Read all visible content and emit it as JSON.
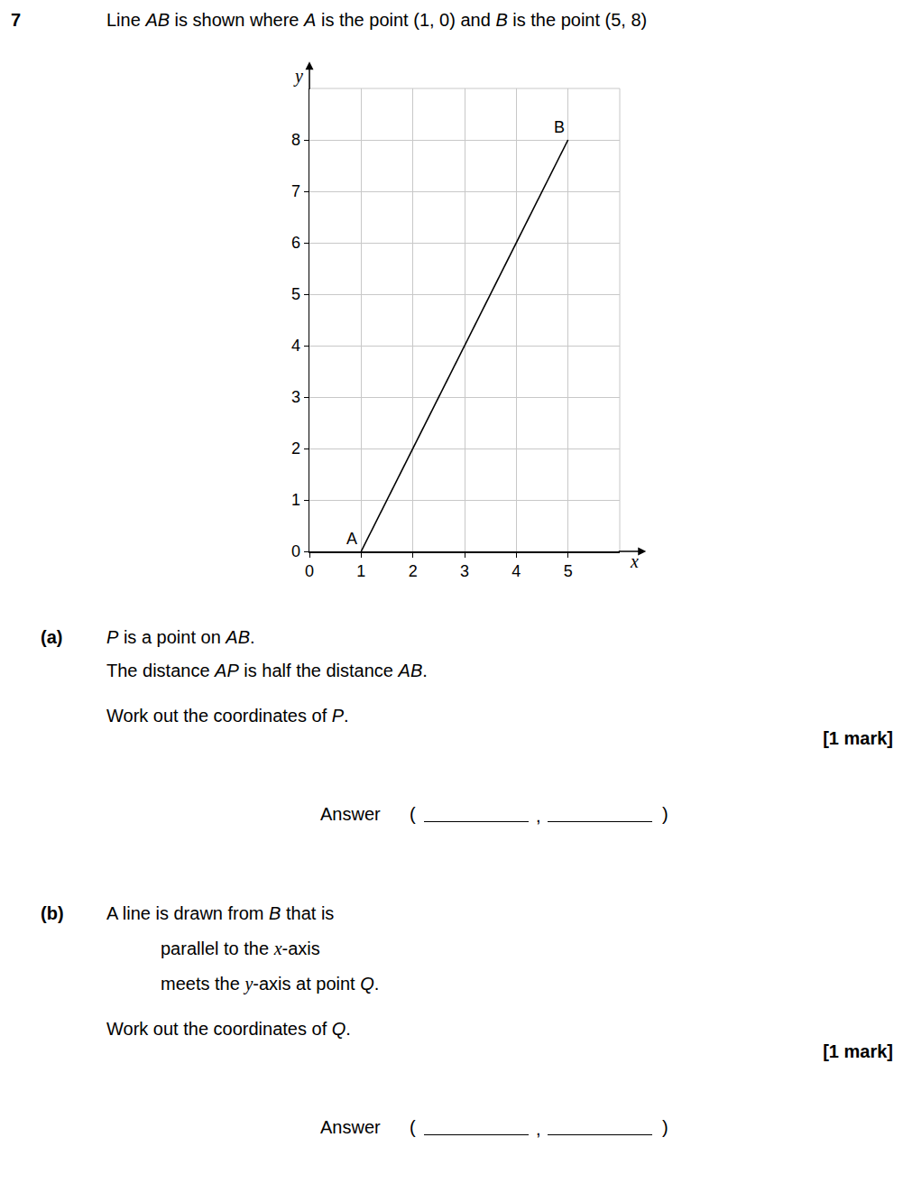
{
  "question": {
    "number": "7",
    "text": {
      "text": "Line AB is shown where A is the point (1, 0) and B is the point (5, 8)",
      "italic": [
        "AB",
        "A",
        "B"
      ]
    }
  },
  "chart_data": {
    "type": "line",
    "x": [
      1,
      5
    ],
    "values": [
      0,
      8
    ],
    "point_labels": [
      "A",
      "B"
    ],
    "color": "#000000",
    "x_label": "x",
    "y_label": "y",
    "xlim": [
      0,
      6
    ],
    "ylim": [
      0,
      9
    ],
    "xticks": [
      0,
      1,
      2,
      3,
      4,
      5
    ],
    "yticks": [
      0,
      1,
      2,
      3,
      4,
      5,
      6,
      7,
      8
    ],
    "grid": true
  },
  "parts": [
    {
      "label": "(a)",
      "lines": [
        {
          "text": "P is a point on AB.",
          "italic": [
            "P",
            "AB"
          ]
        },
        {
          "text": "The distance AP is half the distance AB.",
          "italic": [
            "AP",
            "AB"
          ]
        }
      ],
      "conditions": [],
      "task": {
        "text": "Work out the coordinates of P.",
        "italic": [
          "P"
        ]
      },
      "marks": "[1 mark]",
      "answer": {
        "label": "Answer",
        "open": "(",
        "sep": ",",
        "close": ")"
      }
    },
    {
      "label": "(b)",
      "lines": [
        {
          "text": "A line is drawn from B that is",
          "italic": [
            "B"
          ]
        }
      ],
      "conditions": [
        {
          "text": "parallel to the x-axis",
          "italic": [
            "x"
          ]
        },
        {
          "text": "meets the y-axis at point Q.",
          "italic": [
            "y",
            "Q"
          ]
        }
      ],
      "task": {
        "text": "Work out the coordinates of Q.",
        "italic": [
          "Q"
        ]
      },
      "marks": "[1 mark]",
      "answer": {
        "label": "Answer",
        "open": "(",
        "sep": ",",
        "close": ")"
      }
    }
  ]
}
